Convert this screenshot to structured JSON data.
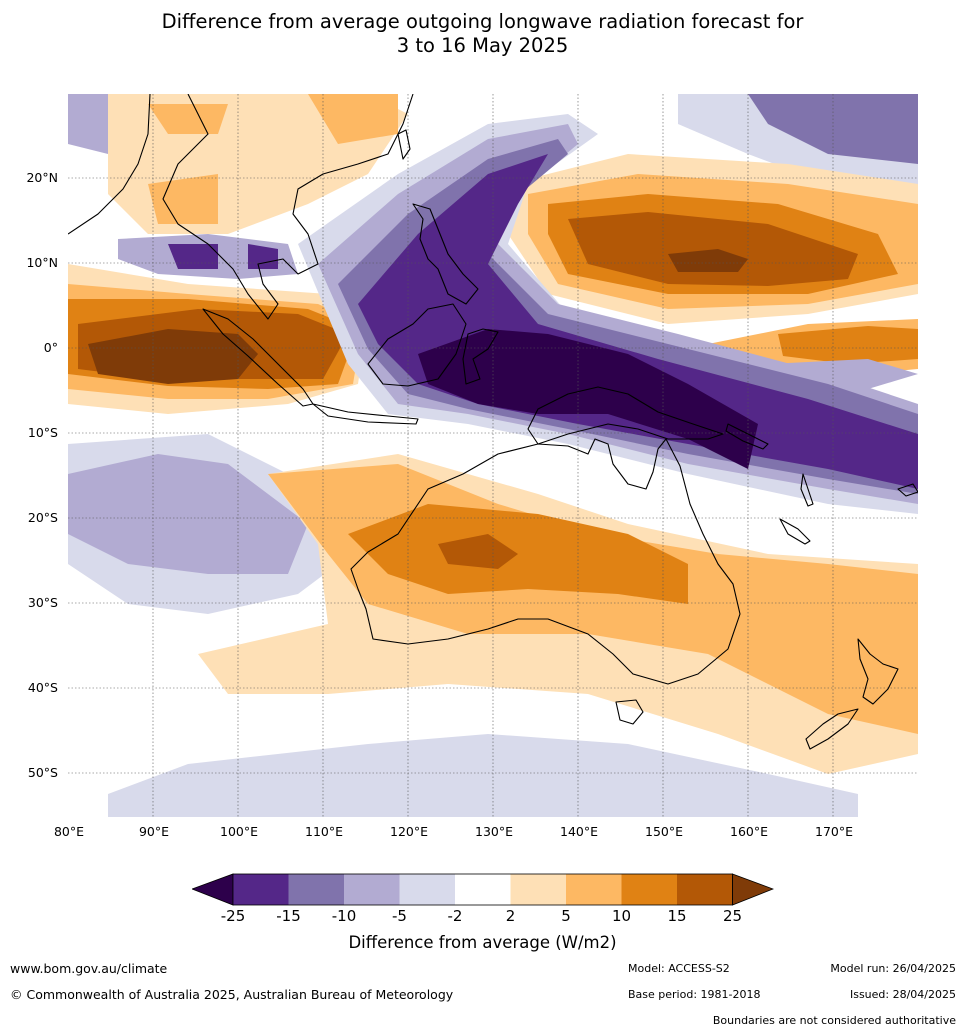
{
  "title_line1": "Difference from average outgoing longwave radiation forecast for",
  "title_line2": "3 to 16 May 2025",
  "latitude_labels": [
    "20°N",
    "10°N",
    "0°",
    "10°S",
    "20°S",
    "30°S",
    "40°S",
    "50°S"
  ],
  "longitude_labels": [
    "80°E",
    "90°E",
    "100°E",
    "110°E",
    "120°E",
    "130°E",
    "140°E",
    "150°E",
    "160°E",
    "170°E"
  ],
  "colorbar": {
    "ticks": [
      "-25",
      "-15",
      "-10",
      "-5",
      "-2",
      "2",
      "5",
      "10",
      "15",
      "25"
    ],
    "title": "Difference from average (W/m2)",
    "colors": {
      "below_min": "#2d004b",
      "n25_n15": "#542788",
      "n15_n10": "#8073ac",
      "n10_n5": "#b2abd2",
      "n5_n2": "#d8daeb",
      "n2_p2": "#ffffff",
      "p2_p5": "#fee0b6",
      "p5_p10": "#fdb863",
      "p10_p15": "#e08214",
      "p15_p25": "#b35806",
      "above_max": "#7f3b08"
    }
  },
  "footer": {
    "website": "www.bom.gov.au/climate",
    "copyright": "© Commonwealth of Australia 2025, Australian Bureau of Meteorology",
    "model": "Model: ACCESS-S2",
    "base_period": "Base period: 1981-2018",
    "model_run": "Model run: 26/04/2025",
    "issued": "Issued: 28/04/2025",
    "disclaimer": "Boundaries are not considered authoritative"
  }
}
